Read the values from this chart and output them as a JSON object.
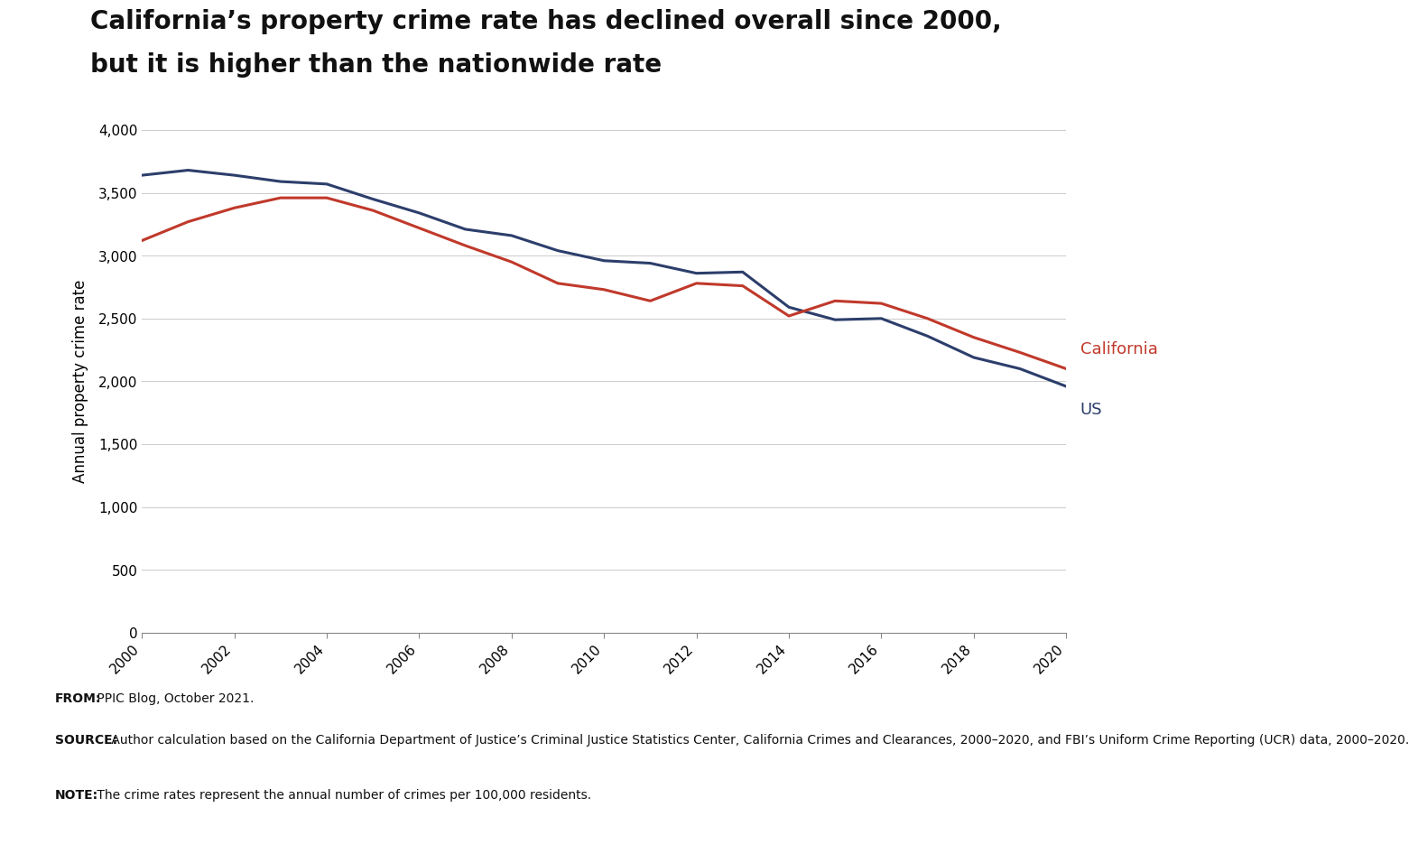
{
  "years": [
    2000,
    2001,
    2002,
    2003,
    2004,
    2005,
    2006,
    2007,
    2008,
    2009,
    2010,
    2011,
    2012,
    2013,
    2014,
    2015,
    2016,
    2017,
    2018,
    2019,
    2020
  ],
  "california": [
    3120,
    3270,
    3380,
    3460,
    3460,
    3360,
    3220,
    3080,
    2950,
    2780,
    2730,
    2640,
    2780,
    2760,
    2520,
    2640,
    2620,
    2500,
    2350,
    2230,
    2100
  ],
  "us": [
    3640,
    3680,
    3640,
    3590,
    3570,
    3450,
    3340,
    3210,
    3160,
    3040,
    2960,
    2940,
    2860,
    2870,
    2590,
    2490,
    2500,
    2360,
    2190,
    2100,
    1960
  ],
  "california_color": "#c0392b",
  "us_color": "#2c3e6b",
  "title_line1": "California’s property crime rate has declined overall since 2000,",
  "title_line2": "but it is higher than the nationwide rate",
  "ylabel": "Annual property crime rate",
  "ylim": [
    0,
    4000
  ],
  "yticks": [
    0,
    500,
    1000,
    1500,
    2000,
    2500,
    3000,
    3500,
    4000
  ],
  "xticks": [
    2000,
    2002,
    2004,
    2006,
    2008,
    2010,
    2012,
    2014,
    2016,
    2018,
    2020
  ],
  "line_width": 2.2,
  "california_label": "California",
  "us_label": "US",
  "background_color": "#ffffff",
  "note_background": "#e8e8e8",
  "title_fontsize": 20,
  "label_fontsize": 12,
  "tick_fontsize": 11,
  "note_fontsize": 10,
  "from_bold": "FROM:",
  "from_rest": " PPIC Blog, October 2021.",
  "source_bold": "SOURCE:",
  "source_rest": " Author calculation based on the California Department of Justice’s Criminal Justice Statistics Center, California Crimes and Clearances, 2000–2020, and FBI’s Uniform Crime Reporting (UCR) data, 2000–2020.",
  "note_bold": "NOTE:",
  "note_rest": " The crime rates represent the annual number of crimes per 100,000 residents."
}
